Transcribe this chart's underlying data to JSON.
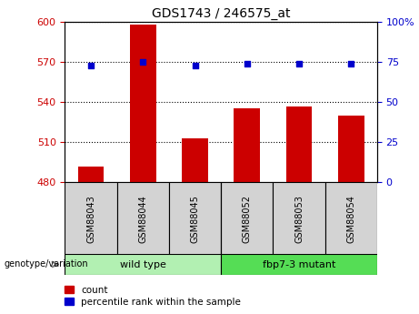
{
  "title": "GDS1743 / 246575_at",
  "categories": [
    "GSM88043",
    "GSM88044",
    "GSM88045",
    "GSM88052",
    "GSM88053",
    "GSM88054"
  ],
  "bar_values": [
    492,
    598,
    513,
    535,
    537,
    530
  ],
  "percentile_values": [
    73,
    75,
    73,
    74,
    74,
    74
  ],
  "ylim_left": [
    480,
    600
  ],
  "ylim_right": [
    0,
    100
  ],
  "yticks_left": [
    480,
    510,
    540,
    570,
    600
  ],
  "yticks_right": [
    0,
    25,
    50,
    75,
    100
  ],
  "bar_color": "#cc0000",
  "dot_color": "#0000cc",
  "bar_bottom": 480,
  "groups": [
    {
      "label": "wild type",
      "indices": [
        0,
        1,
        2
      ],
      "color": "#b2f0b2"
    },
    {
      "label": "fbp7-3 mutant",
      "indices": [
        3,
        4,
        5
      ],
      "color": "#55dd55"
    }
  ],
  "group_label": "genotype/variation",
  "legend_count_label": "count",
  "legend_percentile_label": "percentile rank within the sample",
  "tick_label_color_left": "#cc0000",
  "tick_label_color_right": "#0000cc",
  "background_color": "#ffffff",
  "plot_bg_color": "#ffffff",
  "xlabel_area_color": "#d3d3d3",
  "figsize": [
    4.61,
    3.45
  ],
  "dpi": 100
}
